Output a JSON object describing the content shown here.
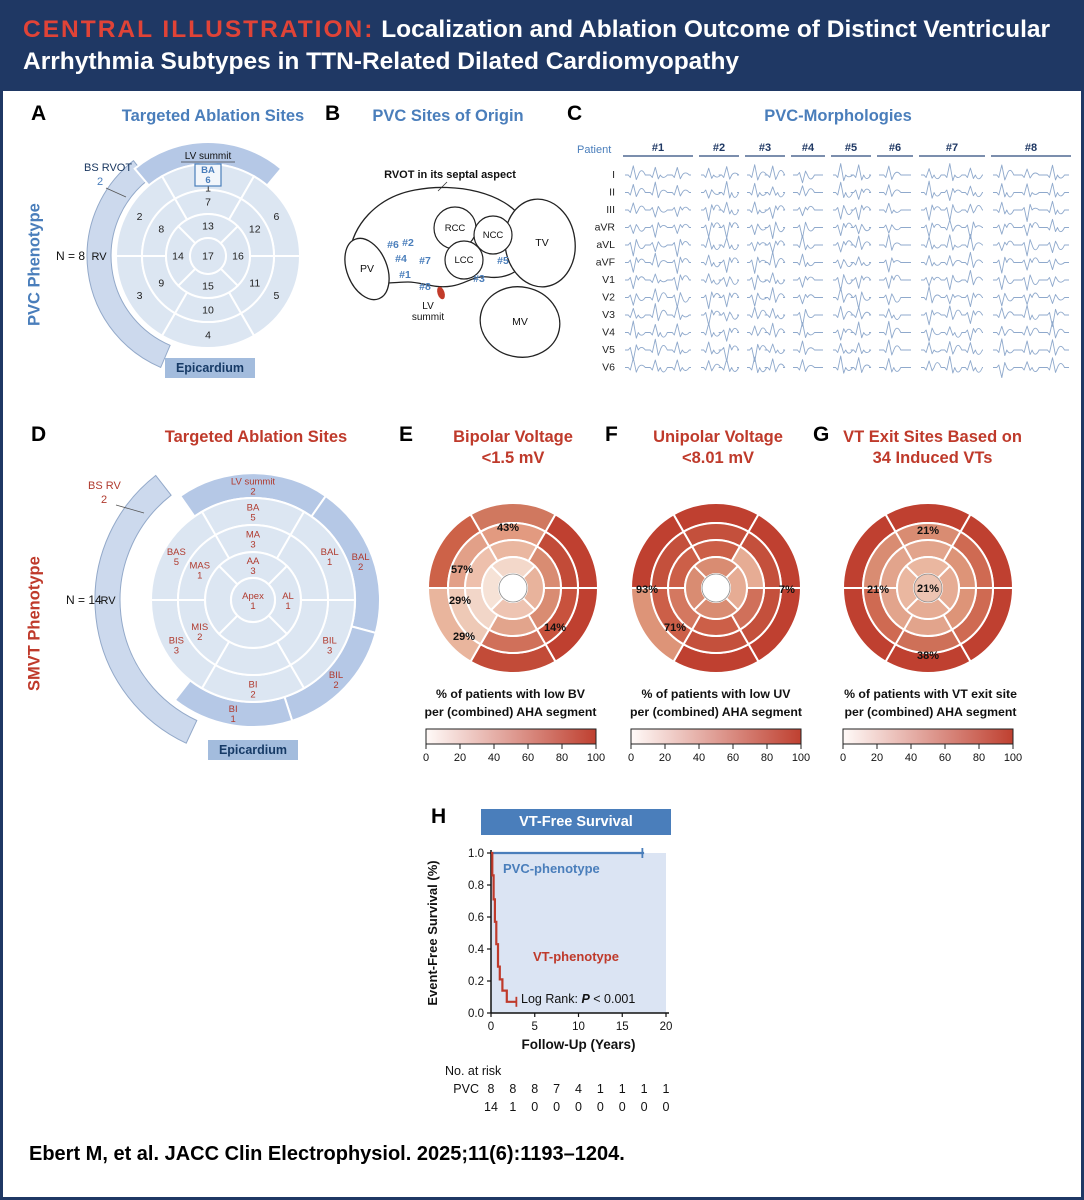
{
  "header": {
    "prefix": "CENTRAL ILLUSTRATION:",
    "title": "Localization and Ablation Outcome of Distinct Ventricular Arrhythmia Subtypes in TTN-Related Dilated Cardiomyopathy"
  },
  "citation": "Ebert M, et al. JACC Clin Electrophysiol. 2025;11(6):1193–1204.",
  "colors": {
    "navy": "#1f3864",
    "blue": "#4a7ebb",
    "red": "#bf3a2b",
    "red2": "#b03a2e",
    "seg": "#dce6f2",
    "crescent": "#ccd9ed",
    "wedge": "#b5c8e6",
    "heat": "#bf4030",
    "plotbg": "#dbe4f3",
    "epibox": "#a3bcdd"
  },
  "panels": {
    "A": {
      "label": "A",
      "title": "Targeted Ablation Sites",
      "side_label": "PVC Phenotype",
      "n_label": "N = 8",
      "rv_label": "RV",
      "annotation": {
        "name": "BS RVOT",
        "count": "2"
      },
      "lv_summit_label": "LV summit",
      "boxed_site": {
        "name": "BA",
        "count": "6"
      },
      "segment_numbers": [
        "1",
        "2",
        "3",
        "4",
        "5",
        "6",
        "7",
        "8",
        "9",
        "10",
        "11",
        "12",
        "13",
        "14",
        "15",
        "16",
        "17"
      ],
      "epicardium_label": "Epicardium"
    },
    "B": {
      "label": "B",
      "title": "PVC Sites of Origin",
      "note": "RVOT in its septal aspect",
      "structures": {
        "pv": "PV",
        "rcc": "RCC",
        "ncc": "NCC",
        "lcc": "LCC",
        "tv": "TV",
        "mv": "MV"
      },
      "lv_summit": [
        "LV",
        "summit"
      ],
      "markers": [
        "#1",
        "#2",
        "#3",
        "#4",
        "#5",
        "#6",
        "#7",
        "#8"
      ]
    },
    "C": {
      "label": "C",
      "title": "PVC-Morphologies",
      "patient_label": "Patient",
      "patients": [
        "#1",
        "#2",
        "#3",
        "#4",
        "#5",
        "#6",
        "#7",
        "#8"
      ],
      "leads": [
        "I",
        "II",
        "III",
        "aVR",
        "aVL",
        "aVF",
        "V1",
        "V2",
        "V3",
        "V4",
        "V5",
        "V6"
      ]
    },
    "D": {
      "label": "D",
      "title": "Targeted Ablation Sites",
      "side_label": "SMVT Phenotype",
      "n_label": "N = 14",
      "rv_label": "RV",
      "annotation": {
        "name": "BS RV",
        "count": "2"
      },
      "epicardium_label": "Epicardium",
      "outer_sites": [
        {
          "name": "LV summit",
          "count": "2"
        },
        {
          "name": "BAL",
          "count": "2"
        },
        {
          "name": "BIL",
          "count": "2"
        },
        {
          "name": "BI",
          "count": "1"
        }
      ],
      "basal_sites": [
        {
          "name": "BA",
          "count": "5"
        },
        {
          "name": "BAL",
          "count": "1"
        },
        {
          "name": "BIL",
          "count": "3"
        },
        {
          "name": "BI",
          "count": "2"
        },
        {
          "name": "BIS",
          "count": "3"
        },
        {
          "name": "BAS",
          "count": "5"
        }
      ],
      "mid_sites": [
        {
          "name": "MA",
          "count": "3"
        },
        {
          "name": "MIS",
          "count": "2"
        },
        {
          "name": "MAS",
          "count": "1"
        }
      ],
      "apical_sites": [
        {
          "name": "AA",
          "count": "3"
        },
        {
          "name": "AL",
          "count": "1"
        }
      ],
      "apex_site": {
        "name": "Apex",
        "count": "1"
      }
    },
    "E": {
      "label": "E",
      "title": [
        "Bipolar Voltage",
        "<1.5 mV"
      ],
      "caption": [
        "% of patients with low BV",
        "per (combined) AHA segment"
      ],
      "scale_ticks": [
        "0",
        "20",
        "40",
        "60",
        "80",
        "100"
      ],
      "percent_labels": [
        "43%",
        "57%",
        "29%",
        "29%",
        "14%"
      ],
      "fills": {
        "epi": [
          "#d0785f",
          "#bf4030",
          "#bf4030",
          "#c24b38",
          "#e9b59d",
          "#cd6248"
        ],
        "basal": [
          "#e29a80",
          "#c24b38",
          "#c8523d",
          "#d0705a",
          "#eec9b6",
          "#e2a088"
        ],
        "mid": [
          "#eab7a0",
          "#d98c72",
          "#d98c72",
          "#e2a48c",
          "#f2d6c8",
          "#eec0ac"
        ],
        "apical": [
          "#f3d8ca",
          "#e8b39c",
          "#eec4b2",
          "#f6e2d6"
        ],
        "center": "#ffffff"
      }
    },
    "F": {
      "label": "F",
      "title": [
        "Unipolar Voltage",
        "<8.01 mV"
      ],
      "caption": [
        "% of patients with low UV",
        "per (combined) AHA segment"
      ],
      "scale_ticks": [
        "0",
        "20",
        "40",
        "60",
        "80",
        "100"
      ],
      "percent_labels": [
        "93%",
        "71%",
        "7%"
      ],
      "fills": {
        "epi": [
          "#bf4030",
          "#bf4030",
          "#bf4030",
          "#bf4030",
          "#dd9478",
          "#bf4030"
        ],
        "basal": [
          "#c4503c",
          "#c4503c",
          "#c4503c",
          "#c4503c",
          "#cc5f48",
          "#c4503c"
        ],
        "mid": [
          "#cc5f48",
          "#e6ac94",
          "#d0705a",
          "#cc5f48",
          "#d47860",
          "#cc5f48"
        ],
        "apical": [
          "#d98c72",
          "#e6ac94",
          "#d98c72",
          "#d98c72"
        ],
        "center": "#ffffff"
      }
    },
    "G": {
      "label": "G",
      "title": [
        "VT Exit Sites Based on",
        "34 Induced VTs"
      ],
      "caption": [
        "% of patients with VT exit site",
        "per (combined) AHA segment"
      ],
      "scale_ticks": [
        "0",
        "20",
        "40",
        "60",
        "80",
        "100"
      ],
      "percent_labels": [
        "21%",
        "21%",
        "21%",
        "38%"
      ],
      "fills": {
        "epi": [
          "#bf4030",
          "#bf4030",
          "#bf4030",
          "#bf4030",
          "#bf4030",
          "#bf4030"
        ],
        "basal": [
          "#d98c72",
          "#cf6a52",
          "#cf6a52",
          "#ce7058",
          "#cf6a52",
          "#d98c72"
        ],
        "mid": [
          "#e2a48c",
          "#dd9478",
          "#dd9478",
          "#e2a48c",
          "#e2a48c",
          "#e2a48c"
        ],
        "apical": [
          "#eab7a0",
          "#e6ac94",
          "#e6ac94",
          "#eab7a0"
        ],
        "center": "#edc4b2"
      }
    },
    "H": {
      "label": "H",
      "title": "VT-Free Survival",
      "ylabel": "Event-Free Survival (%)",
      "xlabel": "Follow-Up (Years)",
      "yticks": [
        "0.0",
        "0.2",
        "0.4",
        "0.6",
        "0.8",
        "1.0"
      ],
      "xticks": [
        "0",
        "5",
        "10",
        "15",
        "20"
      ],
      "curve_labels": {
        "pvc": "PVC-phenotype",
        "vt": "VT-phenotype"
      },
      "logrank_prefix": "Log Rank: ",
      "logrank_stat": "P",
      "logrank_value": " < 0.001",
      "risk_header": "No. at risk",
      "risk_rows": [
        {
          "label": "PVC",
          "values": [
            "8",
            "8",
            "8",
            "7",
            "4",
            "1",
            "1",
            "1",
            "1"
          ]
        },
        {
          "label": "",
          "values": [
            "14",
            "1",
            "0",
            "0",
            "0",
            "0",
            "0",
            "0",
            "0"
          ]
        }
      ]
    }
  },
  "chart_data": [
    {
      "type": "bar",
      "panel": "A",
      "title": "Targeted Ablation Sites (PVC phenotype)",
      "n_patients": 8,
      "categories": [
        "BA (LV summit)",
        "BS RVOT"
      ],
      "values": [
        6,
        2
      ]
    },
    {
      "type": "bar",
      "panel": "D",
      "title": "Targeted Ablation Sites (SMVT phenotype)",
      "n_patients": 14,
      "categories": [
        "LV summit (epicardial)",
        "BAL (epicardial)",
        "BIL (epicardial)",
        "BI (epicardial)",
        "BA",
        "BAL",
        "BIL",
        "BI",
        "BIS",
        "BAS",
        "MA",
        "MIS",
        "MAS",
        "AA",
        "AL",
        "Apex",
        "BS RV"
      ],
      "values": [
        2,
        2,
        2,
        1,
        5,
        1,
        3,
        2,
        3,
        5,
        3,
        2,
        1,
        3,
        1,
        1,
        2
      ]
    },
    {
      "type": "heatmap",
      "panel": "E",
      "title": "Bipolar Voltage <1.5 mV",
      "unit": "% of patients with low BV per (combined) AHA segment",
      "scale": [
        0,
        100
      ],
      "labeled_values": [
        {
          "region": "anterior",
          "value": 43
        },
        {
          "region": "anteroseptal",
          "value": 57
        },
        {
          "region": "septal (mid)",
          "value": 29
        },
        {
          "region": "inferoseptal",
          "value": 29
        },
        {
          "region": "inferolateral",
          "value": 14
        }
      ]
    },
    {
      "type": "heatmap",
      "panel": "F",
      "title": "Unipolar Voltage <8.01 mV",
      "unit": "% of patients with low UV per (combined) AHA segment",
      "scale": [
        0,
        100
      ],
      "labeled_values": [
        {
          "region": "septal",
          "value": 93
        },
        {
          "region": "inferoseptal",
          "value": 71
        },
        {
          "region": "lateral",
          "value": 7
        }
      ]
    },
    {
      "type": "heatmap",
      "panel": "G",
      "title": "VT Exit Sites Based on 34 Induced VTs",
      "unit": "% of patients with VT exit site per (combined) AHA segment",
      "scale": [
        0,
        100
      ],
      "labeled_values": [
        {
          "region": "anterior",
          "value": 21
        },
        {
          "region": "septal",
          "value": 21
        },
        {
          "region": "apex",
          "value": 21
        },
        {
          "region": "inferior",
          "value": 38
        }
      ]
    },
    {
      "type": "line",
      "panel": "H",
      "title": "VT-Free Survival",
      "xlabel": "Follow-Up (Years)",
      "ylabel": "Event-Free Survival (%)",
      "xlim": [
        0,
        20
      ],
      "ylim": [
        0,
        1
      ],
      "series": [
        {
          "name": "PVC-phenotype",
          "color": "#4a7ebb",
          "x": [
            0,
            17.5
          ],
          "y": [
            1.0,
            1.0
          ],
          "censor_x": [
            17.3
          ]
        },
        {
          "name": "VT-phenotype",
          "color": "#bf3a2b",
          "x": [
            0,
            0.15,
            0.3,
            0.45,
            0.6,
            0.8,
            1.0,
            1.3,
            1.8,
            2.9
          ],
          "y": [
            1.0,
            0.86,
            0.71,
            0.57,
            0.43,
            0.29,
            0.21,
            0.14,
            0.07,
            0.07
          ],
          "censor_x": [
            2.9
          ]
        }
      ],
      "annotation": "Log Rank: P < 0.001",
      "number_at_risk": {
        "time_points": [
          0,
          2.5,
          5,
          7.5,
          10,
          12.5,
          15,
          17.5,
          20
        ],
        "rows": [
          {
            "group": "PVC",
            "counts": [
              8,
              8,
              8,
              7,
              4,
              1,
              1,
              1,
              1
            ]
          },
          {
            "group": "VT",
            "counts": [
              14,
              1,
              0,
              0,
              0,
              0,
              0,
              0,
              0
            ]
          }
        ]
      }
    }
  ]
}
